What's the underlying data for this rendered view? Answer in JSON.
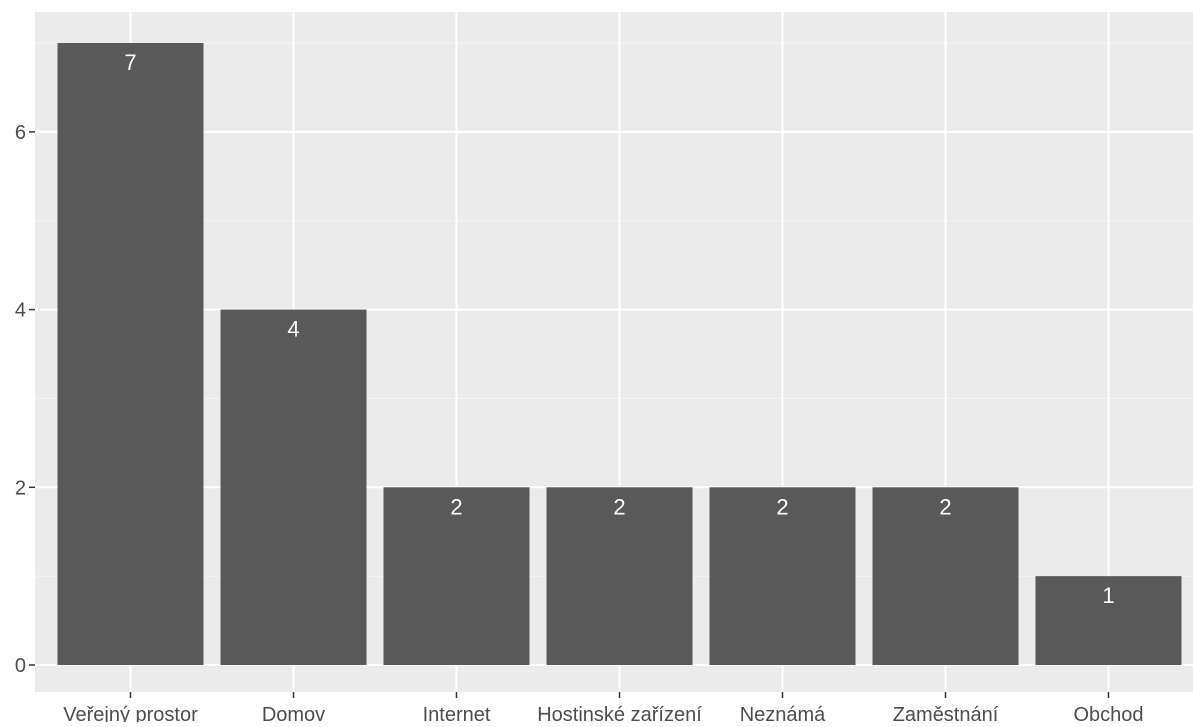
{
  "chart_data": {
    "type": "bar",
    "title": "",
    "xlabel": "",
    "ylabel": "",
    "categories": [
      "Veřejný prostor",
      "Domov",
      "Internet",
      "Hostinské zařízení",
      "Neznámá",
      "Zaměstnání",
      "Obchod"
    ],
    "values": [
      7,
      4,
      2,
      2,
      2,
      2,
      1
    ],
    "data_labels": [
      "7",
      "4",
      "2",
      "2",
      "2",
      "2",
      "1"
    ],
    "ylim": [
      0,
      7.35
    ],
    "yticks": [
      0,
      2,
      4,
      6
    ],
    "ytick_labels": [
      "0",
      "2",
      "4",
      "6"
    ],
    "grid": true,
    "legend": "none",
    "colors": {
      "bar": "#595959",
      "panel_background": "#ebebeb",
      "grid_major": "#ffffff",
      "grid_minor": "#f5f5f5",
      "data_label": "#ffffff",
      "tick_label": "#4d4d4d",
      "tick_mark": "#333333"
    }
  }
}
